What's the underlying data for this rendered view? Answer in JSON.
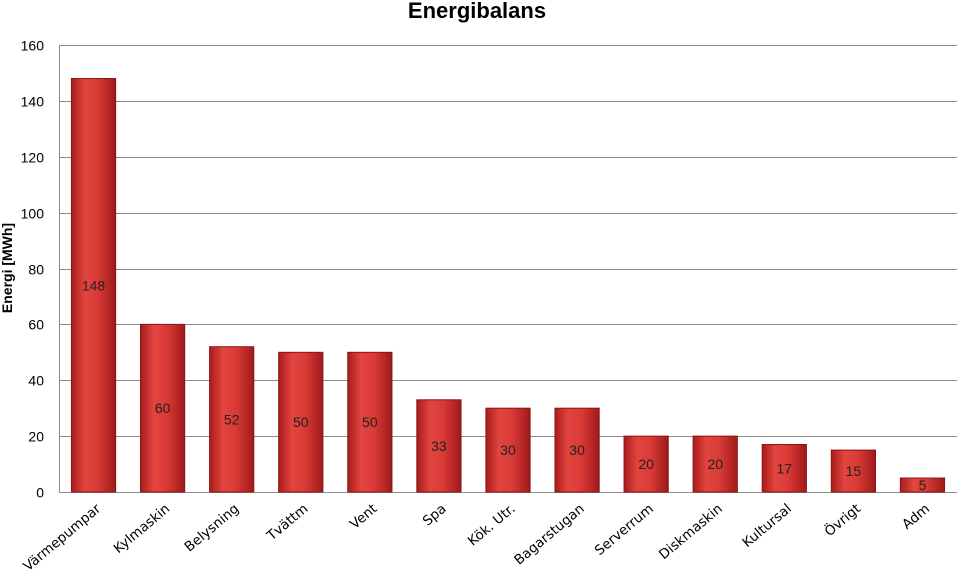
{
  "chart_data": {
    "type": "bar",
    "title": "Energibalans",
    "xlabel": "",
    "ylabel": "Energi [MWh]",
    "ylim": [
      0,
      160
    ],
    "yticks": [
      0,
      20,
      40,
      60,
      80,
      100,
      120,
      140,
      160
    ],
    "grid": true,
    "legend": "none",
    "categories": [
      "Värmepumpar",
      "Kylmaskin",
      "Belysning",
      "Tvättm",
      "Vent",
      "Spa",
      "Kök. Utr.",
      "Bagarstugan",
      "Serverrum",
      "Diskmaskin",
      "Kultursal",
      "Övrigt",
      "Adm"
    ],
    "values": [
      148,
      60,
      52,
      50,
      50,
      33,
      30,
      30,
      20,
      20,
      17,
      15,
      5
    ],
    "data_labels": [
      "148",
      "60",
      "52",
      "50",
      "50",
      "33",
      "30",
      "30",
      "20",
      "20",
      "17",
      "15",
      "5"
    ],
    "bar_color": "#d93a36",
    "bar_edge_color": "#8b1414"
  }
}
